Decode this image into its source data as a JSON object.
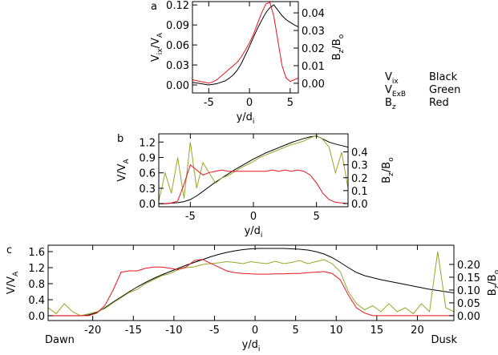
{
  "chart_data": [
    {
      "type": "line",
      "panel_label": "a",
      "xlabel": [
        {
          "text": "y/d"
        },
        {
          "text": "i",
          "sub": true
        }
      ],
      "ylabel": [
        {
          "text": "V"
        },
        {
          "text": "ix",
          "sub": true
        },
        {
          "text": "/V"
        },
        {
          "text": "A",
          "sub": true
        }
      ],
      "y2label": [
        {
          "text": "B"
        },
        {
          "text": "z",
          "sub": true
        },
        {
          "text": "/B"
        },
        {
          "text": "o",
          "sub": true
        }
      ],
      "xlim": [
        -7,
        6
      ],
      "xticks": [
        -5,
        0,
        5
      ],
      "ylim": [
        -0.012,
        0.125
      ],
      "yticks": [
        {
          "value": 0,
          "label": "0.00"
        },
        0.03,
        0.06,
        0.09,
        0.12
      ],
      "y2lim": [
        -0.0055,
        0.0464
      ],
      "y2ticks": [
        {
          "value": 0,
          "label": "0.00"
        },
        0.01,
        0.02,
        0.03,
        0.04
      ],
      "x": [
        -7,
        -6.5,
        -6,
        -5.5,
        -5,
        -4.5,
        -4,
        -3.5,
        -3,
        -2.5,
        -2,
        -1.5,
        -1,
        -0.5,
        0,
        0.5,
        1,
        1.5,
        2,
        2.5,
        3,
        3.5,
        4,
        4.5,
        5,
        5.5,
        6
      ],
      "series": [
        {
          "color": "#000000",
          "values": [
            0.004,
            0.003,
            0.002,
            0.001,
            0.0,
            0.001,
            0.002,
            0.004,
            0.006,
            0.01,
            0.015,
            0.022,
            0.032,
            0.045,
            0.058,
            0.072,
            0.085,
            0.097,
            0.108,
            0.116,
            0.12,
            0.112,
            0.104,
            0.098,
            0.094,
            0.09,
            0.087
          ]
        },
        {
          "color": "#e8141e",
          "axis": "y2",
          "values": [
            0.002,
            0.0015,
            0.001,
            0.0005,
            0.0,
            0.0008,
            0.002,
            0.004,
            0.006,
            0.008,
            0.01,
            0.012,
            0.015,
            0.019,
            0.023,
            0.028,
            0.034,
            0.04,
            0.045,
            0.046,
            0.038,
            0.024,
            0.01,
            0.003,
            0.001,
            0.002,
            0.003
          ]
        }
      ]
    },
    {
      "type": "line",
      "panel_label": "b",
      "xlabel": [
        {
          "text": "y/d"
        },
        {
          "text": "i",
          "sub": true
        }
      ],
      "ylabel": [
        {
          "text": "V/V"
        },
        {
          "text": "A",
          "sub": true
        }
      ],
      "y2label": [
        {
          "text": "B"
        },
        {
          "text": "z",
          "sub": true
        },
        {
          "text": "/B"
        },
        {
          "text": "o",
          "sub": true
        }
      ],
      "xlim": [
        -7.5,
        7.5
      ],
      "xticks": [
        -5,
        0,
        5
      ],
      "ylim": [
        -0.06,
        1.36
      ],
      "yticks": [
        {
          "value": 0,
          "label": "0.0"
        },
        0.3,
        0.6,
        0.9,
        1.2
      ],
      "y2lim": [
        -0.025,
        0.54
      ],
      "y2ticks": [
        {
          "value": 0,
          "label": "0.0"
        },
        0.1,
        0.2,
        0.3,
        0.4
      ],
      "x": [
        -7.5,
        -7,
        -6.5,
        -6,
        -5.5,
        -5,
        -4.5,
        -4,
        -3.5,
        -3,
        -2.5,
        -2,
        -1.5,
        -1,
        -0.5,
        0,
        0.5,
        1,
        1.5,
        2,
        2.5,
        3,
        3.5,
        4,
        4.5,
        5,
        5.5,
        6,
        6.5,
        7,
        7.5
      ],
      "series": [
        {
          "color": "#000000",
          "values": [
            0.0,
            0.0,
            0.01,
            0.02,
            0.04,
            0.08,
            0.15,
            0.24,
            0.33,
            0.42,
            0.5,
            0.58,
            0.66,
            0.73,
            0.8,
            0.87,
            0.93,
            0.99,
            1.04,
            1.09,
            1.14,
            1.19,
            1.23,
            1.27,
            1.3,
            1.32,
            1.26,
            1.2,
            1.16,
            1.13,
            1.1
          ]
        },
        {
          "color": "#9aa52a",
          "values": [
            0.05,
            0.6,
            0.2,
            0.9,
            0.1,
            1.2,
            0.3,
            0.8,
            0.6,
            0.4,
            0.5,
            0.55,
            0.62,
            0.7,
            0.76,
            0.82,
            0.9,
            0.95,
            1.0,
            1.05,
            1.1,
            1.15,
            1.18,
            1.22,
            1.28,
            1.33,
            1.25,
            1.1,
            0.6,
            1.0,
            0.3
          ]
        },
        {
          "color": "#e8141e",
          "axis": "y2",
          "values": [
            0.0,
            0.0,
            0.005,
            0.02,
            0.15,
            0.3,
            0.26,
            0.22,
            0.24,
            0.25,
            0.26,
            0.25,
            0.25,
            0.25,
            0.25,
            0.25,
            0.25,
            0.25,
            0.26,
            0.25,
            0.26,
            0.25,
            0.26,
            0.25,
            0.22,
            0.16,
            0.08,
            0.03,
            0.01,
            0.005,
            0.0
          ]
        }
      ]
    },
    {
      "type": "line",
      "panel_label": "c",
      "left_note": "Dawn",
      "right_note": "Dusk",
      "xlabel": [
        {
          "text": "y/d"
        },
        {
          "text": "i",
          "sub": true
        }
      ],
      "ylabel": [
        {
          "text": "V/V"
        },
        {
          "text": "A",
          "sub": true
        }
      ],
      "y2label": [
        {
          "text": "B"
        },
        {
          "text": "z",
          "sub": true
        },
        {
          "text": "/B"
        },
        {
          "text": "o",
          "sub": true
        }
      ],
      "xlim": [
        -25.5,
        24.5
      ],
      "xticks": [
        -20,
        -15,
        -10,
        -5,
        0,
        5,
        10,
        15,
        20
      ],
      "ylim": [
        -0.12,
        1.76
      ],
      "yticks": [
        {
          "value": 0,
          "label": "0.0"
        },
        0.4,
        0.8,
        1.2,
        1.6
      ],
      "y2lim": [
        -0.019,
        0.275
      ],
      "y2ticks": [
        {
          "value": 0,
          "label": "0.00"
        },
        0.05,
        {
          "value": 0.1,
          "label": "0.10"
        },
        0.15,
        {
          "value": 0.2,
          "label": "0.20"
        }
      ],
      "x": [
        -25.5,
        -24.5,
        -23.5,
        -22.5,
        -21.5,
        -20.5,
        -19.5,
        -18.5,
        -17.5,
        -16.5,
        -15.5,
        -14.5,
        -13.5,
        -12.5,
        -11.5,
        -10.5,
        -9.5,
        -8.5,
        -7.5,
        -6.5,
        -5.5,
        -4.5,
        -3.5,
        -2.5,
        -1.5,
        -0.5,
        0.5,
        1.5,
        2.5,
        3.5,
        4.5,
        5.5,
        6.5,
        7.5,
        8.5,
        9.5,
        10.5,
        11.5,
        12.5,
        13.5,
        14.5,
        15.5,
        16.5,
        17.5,
        18.5,
        19.5,
        20.5,
        21.5,
        22.5,
        23.5,
        24.5
      ],
      "series": [
        {
          "color": "#000000",
          "values": [
            0.0,
            0.0,
            0.0,
            0.0,
            0.0,
            0.02,
            0.08,
            0.2,
            0.34,
            0.47,
            0.6,
            0.72,
            0.83,
            0.93,
            1.02,
            1.1,
            1.18,
            1.26,
            1.33,
            1.4,
            1.47,
            1.53,
            1.58,
            1.62,
            1.65,
            1.67,
            1.68,
            1.68,
            1.68,
            1.68,
            1.67,
            1.66,
            1.64,
            1.6,
            1.54,
            1.45,
            1.33,
            1.2,
            1.08,
            1.0,
            0.95,
            0.9,
            0.86,
            0.82,
            0.78,
            0.74,
            0.7,
            0.66,
            0.63,
            0.6,
            0.57
          ]
        },
        {
          "color": "#9aa52a",
          "values": [
            0.2,
            0.05,
            0.3,
            0.1,
            0.0,
            0.05,
            0.1,
            0.18,
            0.32,
            0.45,
            0.58,
            0.66,
            0.8,
            0.9,
            1.0,
            1.05,
            1.15,
            1.2,
            1.22,
            1.28,
            1.3,
            1.32,
            1.35,
            1.33,
            1.3,
            1.35,
            1.32,
            1.3,
            1.36,
            1.3,
            1.33,
            1.38,
            1.3,
            1.35,
            1.4,
            1.3,
            1.1,
            0.6,
            0.3,
            0.15,
            0.25,
            0.1,
            0.3,
            0.1,
            0.2,
            0.05,
            0.3,
            0.1,
            1.6,
            0.2,
            0.1
          ]
        },
        {
          "color": "#e8141e",
          "axis": "y2",
          "values": [
            0.0,
            0.0,
            0.0,
            0.0,
            0.0,
            0.0,
            0.01,
            0.04,
            0.1,
            0.17,
            0.175,
            0.175,
            0.185,
            0.19,
            0.19,
            0.185,
            0.18,
            0.19,
            0.215,
            0.22,
            0.205,
            0.19,
            0.175,
            0.168,
            0.165,
            0.163,
            0.162,
            0.162,
            0.163,
            0.163,
            0.165,
            0.165,
            0.168,
            0.17,
            0.172,
            0.165,
            0.14,
            0.08,
            0.03,
            0.01,
            0.0,
            0.0,
            0.0,
            0.0,
            0.0,
            0.0,
            0.0,
            0.0,
            0.0,
            0.0,
            0.0
          ]
        }
      ]
    }
  ],
  "legend": [
    {
      "symbol": [
        {
          "text": "V"
        },
        {
          "text": "ix",
          "sub": true
        }
      ],
      "label": "Black",
      "color": "#000000"
    },
    {
      "symbol": [
        {
          "text": "V"
        },
        {
          "text": "ExB",
          "sub": true
        }
      ],
      "label": "Green",
      "color": "#9aa52a"
    },
    {
      "symbol": [
        {
          "text": "B"
        },
        {
          "text": "z",
          "sub": true
        }
      ],
      "label": "Red",
      "color": "#e8141e"
    }
  ]
}
